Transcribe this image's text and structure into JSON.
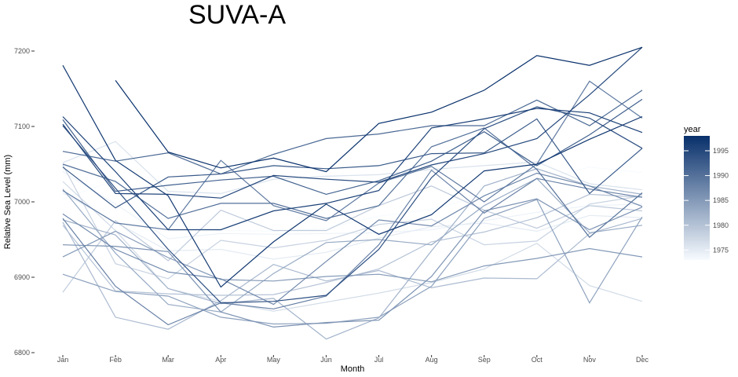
{
  "chart_data": {
    "type": "line",
    "title": "SUVA-A",
    "xlabel": "Month",
    "ylabel": "Relative Sea Level (mm)",
    "categories": [
      "Jan",
      "Feb",
      "Mar",
      "Apr",
      "May",
      "Jun",
      "Jul",
      "Aug",
      "Sep",
      "Oct",
      "Nov",
      "Dec"
    ],
    "ylim": [
      6800,
      7200
    ],
    "yticks": [
      6800,
      6900,
      7000,
      7100,
      7200
    ],
    "grid": false,
    "legend": {
      "title": "year",
      "position": "right",
      "range": [
        1973,
        1998
      ],
      "ticks": [
        1975,
        1980,
        1985,
        1990,
        1995
      ],
      "color_low": "#f7fbff",
      "color_high": "#08306b"
    },
    "series": [
      {
        "year": 1998,
        "values": [
          null,
          7161,
          7066,
          7045,
          7058,
          7040,
          7104,
          7119,
          7148,
          7194,
          7181,
          7205
        ]
      },
      {
        "year": 1997,
        "values": [
          7181,
          7055,
          7008,
          6887,
          6947,
          6997,
          6957,
          6983,
          7041,
          7050,
          7083,
          7113
        ]
      },
      {
        "year": 1996,
        "values": [
          7113,
          7040,
          6963,
          6963,
          6988,
          6998,
          7015,
          7098,
          7110,
          7124,
          7118,
          7092
        ]
      },
      {
        "year": 1995,
        "values": [
          7103,
          7011,
          7010,
          7005,
          7035,
          7030,
          7026,
          7049,
          7064,
          7084,
          7142,
          7205
        ]
      },
      {
        "year": 1994,
        "values": [
          7101,
          7018,
          6937,
          6866,
          6868,
          6876,
          6937,
          7032,
          7097,
          7126,
          7111,
          7071
        ]
      },
      {
        "year": 1993,
        "values": [
          7046,
          6992,
          7033,
          7037,
          7048,
          7044,
          7048,
          7064,
          7065,
          7110,
          7011,
          7071
        ]
      },
      {
        "year": 1992,
        "values": [
          7109,
          7014,
          7022,
          7029,
          7034,
          7010,
          7028,
          7054,
          7093,
          7048,
          7089,
          7136
        ]
      },
      {
        "year": 1991,
        "values": [
          7067,
          7054,
          7065,
          7037,
          7063,
          7084,
          7090,
          7101,
          7101,
          7135,
          7101,
          7148
        ]
      },
      {
        "year": 1990,
        "values": [
          7050,
          7027,
          6978,
          6998,
          6998,
          6978,
          6995,
          7073,
          7098,
          7043,
          6953,
          7012
        ]
      },
      {
        "year": 1989,
        "values": [
          7015,
          6972,
          6963,
          7055,
          6995,
          6975,
          7025,
          7047,
          7000,
          7050,
          7160,
          7111
        ]
      },
      {
        "year": 1988,
        "values": [
          6978,
          6888,
          6837,
          6866,
          6858,
          6875,
          6943,
          7042,
          6985,
          7031,
          7017,
          7006
        ]
      },
      {
        "year": 1987,
        "values": [
          6984,
          6937,
          6907,
          6898,
          6864,
          6921,
          6976,
          6968,
          7008,
          7038,
          7021,
          6994
        ]
      },
      {
        "year": 1986,
        "values": [
          6943,
          6941,
          6934,
          6854,
          6834,
          6840,
          6843,
          6901,
          6988,
          7004,
          6963,
          6993
        ]
      },
      {
        "year": 1985,
        "values": [
          6927,
          6961,
          6926,
          6897,
          6895,
          6901,
          6904,
          6894,
          6915,
          6925,
          6938,
          6927
        ]
      },
      {
        "year": 1984,
        "values": [
          6904,
          6881,
          6875,
          6847,
          6838,
          6839,
          6847,
          6888,
          6978,
          7003,
          6866,
          6980
        ]
      },
      {
        "year": 1983,
        "values": [
          7017,
          6932,
          6864,
          6854,
          6905,
          6946,
          6950,
          6943,
          6995,
          7031,
          6959,
          6969
        ]
      },
      {
        "year": 1982,
        "values": [
          6976,
          6956,
          6885,
          6865,
          6872,
          6818,
          6846,
          6935,
          7021,
          7044,
          7021,
          7010
        ]
      },
      {
        "year": 1981,
        "values": [
          6973,
          6847,
          6831,
          6869,
          6917,
          6895,
          6909,
          6886,
          6899,
          6898,
          6958,
          6978
        ]
      },
      {
        "year": 1980,
        "values": [
          6969,
          6882,
          6878,
          6876,
          6877,
          6893,
          6911,
          6947,
          6960,
          6979,
          7010,
          7006
        ]
      },
      {
        "year": 1979,
        "values": [
          6880,
          6975,
          6922,
          6989,
          6962,
          6962,
          6995,
          7021,
          6989,
          6965,
          6995,
          6988
        ]
      },
      {
        "year": 1978,
        "values": [
          7049,
          6918,
          6898,
          6949,
          6939,
          6949,
          6970,
          6977,
          6943,
          6948,
          6997,
          7008
        ]
      },
      {
        "year": 1977,
        "values": [
          7027,
          6962,
          6885,
          6868,
          6855,
          6867,
          6879,
          6893,
          6911,
          6945,
          6889,
          6868
        ]
      },
      {
        "year": 1976,
        "values": [
          7052,
          7080,
          7014,
          7011,
          7030,
          7034,
          7036,
          7043,
          7048,
          7053,
          7024,
          7016
        ]
      },
      {
        "year": 1975,
        "values": [
          7012,
          6973,
          6935,
          6937,
          6924,
          6933,
          6952,
          6967,
          6972,
          6961,
          6982,
          6979
        ]
      },
      {
        "year": 1974,
        "values": [
          7040,
          6997,
          6951,
          6958,
          6957,
          6958,
          6959,
          6963,
          6975,
          6986,
          6995,
          6997
        ]
      },
      {
        "year": 1973,
        "values": [
          7004,
          7029,
          6970,
          6962,
          6961,
          6965,
          6981,
          6990,
          7009,
          7028,
          7046,
          7039
        ]
      }
    ]
  }
}
